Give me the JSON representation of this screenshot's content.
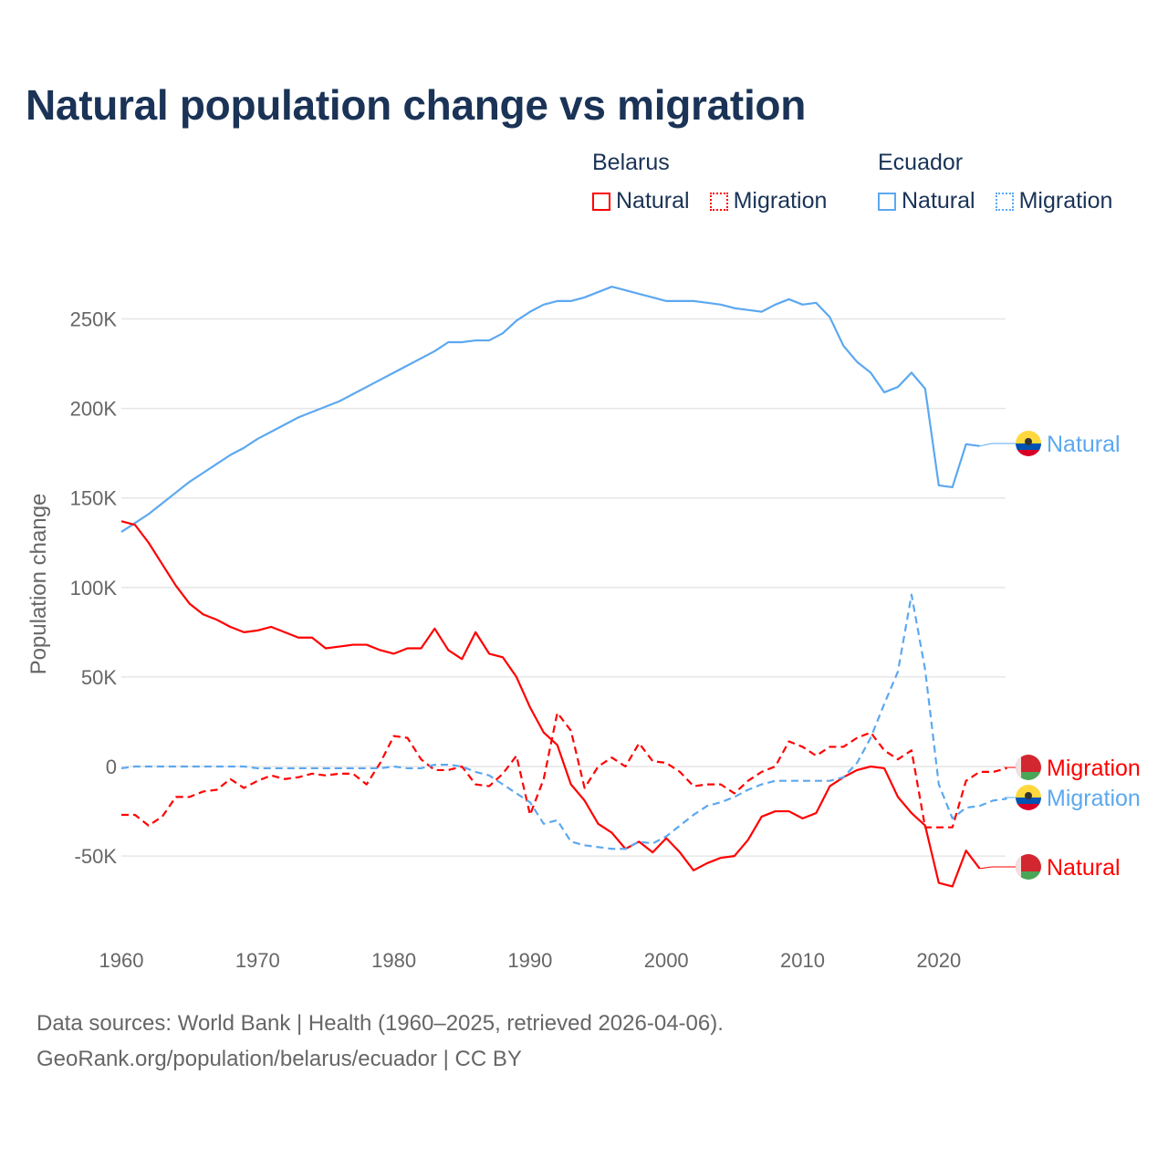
{
  "title": "Natural population change vs migration",
  "legend": {
    "groups": [
      {
        "name": "Belarus",
        "items": [
          "Natural",
          "Migration"
        ],
        "color": "#ff0000"
      },
      {
        "name": "Ecuador",
        "items": [
          "Natural",
          "Migration"
        ],
        "color": "#5ca8f0"
      }
    ]
  },
  "footer": {
    "line1": "Data sources: World Bank | Health (1960–2025, retrieved 2026-04-06).",
    "line2": "GeoRank.org/population/belarus/ecuador | CC BY"
  },
  "chart_data": {
    "type": "line",
    "title": "Natural population change vs migration",
    "xlabel": "",
    "ylabel": "Population change",
    "xlim": [
      1960,
      2025
    ],
    "ylim": [
      -75000,
      275000
    ],
    "x_ticks": [
      1960,
      1970,
      1980,
      1990,
      2000,
      2010,
      2020
    ],
    "x_tick_labels": [
      "1960",
      "1970",
      "1980",
      "1990",
      "2000",
      "2010",
      "2020"
    ],
    "y_ticks": [
      -50000,
      0,
      50000,
      100000,
      150000,
      200000,
      250000
    ],
    "y_tick_labels": [
      "-50K",
      "0",
      "50K",
      "100K",
      "150K",
      "200K",
      "250K"
    ],
    "grid": true,
    "legend_placement": "top-right",
    "series": [
      {
        "name": "Ecuador Natural",
        "label": "Natural",
        "country": "Ecuador",
        "color": "#5ca8f0",
        "dash": "solid",
        "start_year": 1960,
        "values_k": [
          131,
          136,
          141,
          147,
          153,
          159,
          164,
          169,
          174,
          178,
          183,
          187,
          191,
          195,
          198,
          201,
          204,
          208,
          212,
          216,
          220,
          224,
          228,
          232,
          237,
          237,
          238,
          238,
          242,
          249,
          254,
          258,
          260,
          260,
          262,
          265,
          268,
          266,
          264,
          262,
          260,
          260,
          260,
          259,
          258,
          256,
          255,
          254,
          258,
          261,
          258,
          259,
          251,
          235,
          226,
          220,
          209,
          212,
          220,
          211,
          157,
          156,
          180,
          179
        ]
      },
      {
        "name": "Belarus Natural",
        "label": "Natural",
        "country": "Belarus",
        "color": "#ff0000",
        "dash": "solid",
        "start_year": 1960,
        "values_k": [
          137,
          135,
          125,
          113,
          101,
          91,
          85,
          82,
          78,
          75,
          76,
          78,
          75,
          72,
          72,
          66,
          67,
          68,
          68,
          65,
          63,
          66,
          66,
          77,
          65,
          60,
          75,
          63,
          61,
          50,
          33,
          19,
          12,
          -10,
          -19,
          -32,
          -37,
          -46,
          -42,
          -48,
          -40,
          -48,
          -58,
          -54,
          -51,
          -50,
          -41,
          -28,
          -25,
          -25,
          -29,
          -26,
          -11,
          -6,
          -2,
          0,
          -1,
          -17,
          -26,
          -33,
          -65,
          -67,
          -47,
          -57
        ]
      },
      {
        "name": "Belarus Migration",
        "label": "Migration",
        "country": "Belarus",
        "color": "#ff0000",
        "dash": "dashed",
        "start_year": 1960,
        "values_k": [
          -27,
          -27,
          -33,
          -28,
          -17,
          -17,
          -14,
          -13,
          -7,
          -12,
          -8,
          -5,
          -7,
          -6,
          -4,
          -5,
          -4,
          -4,
          -10,
          2,
          17,
          16,
          4,
          -2,
          -2,
          0,
          -10,
          -11,
          -4,
          6,
          -27,
          -7,
          30,
          20,
          -12,
          0,
          5,
          0,
          13,
          3,
          2,
          -3,
          -11,
          -10,
          -10,
          -15,
          -8,
          -3,
          0,
          14,
          11,
          6,
          11,
          11,
          16,
          19,
          9,
          4,
          9,
          -34,
          -34,
          -34,
          -8,
          -3,
          -3,
          -1
        ]
      },
      {
        "name": "Ecuador Migration",
        "label": "Migration",
        "country": "Ecuador",
        "color": "#5ca8f0",
        "dash": "dashed",
        "start_year": 1960,
        "values_k": [
          -1,
          0,
          0,
          0,
          0,
          0,
          0,
          0,
          0,
          0,
          -1,
          -1,
          -1,
          -1,
          -1,
          -1,
          -1,
          -1,
          -1,
          -1,
          0,
          -1,
          -1,
          1,
          1,
          0,
          -3,
          -5,
          -10,
          -15,
          -20,
          -32,
          -30,
          -42,
          -44,
          -45,
          -46,
          -46,
          -42,
          -43,
          -39,
          -33,
          -27,
          -22,
          -20,
          -17,
          -13,
          -10,
          -8,
          -8,
          -8,
          -8,
          -8,
          -6,
          2,
          16,
          35,
          53,
          96,
          54,
          -10,
          -29,
          -23,
          -22,
          -19,
          -18
        ]
      }
    ]
  }
}
